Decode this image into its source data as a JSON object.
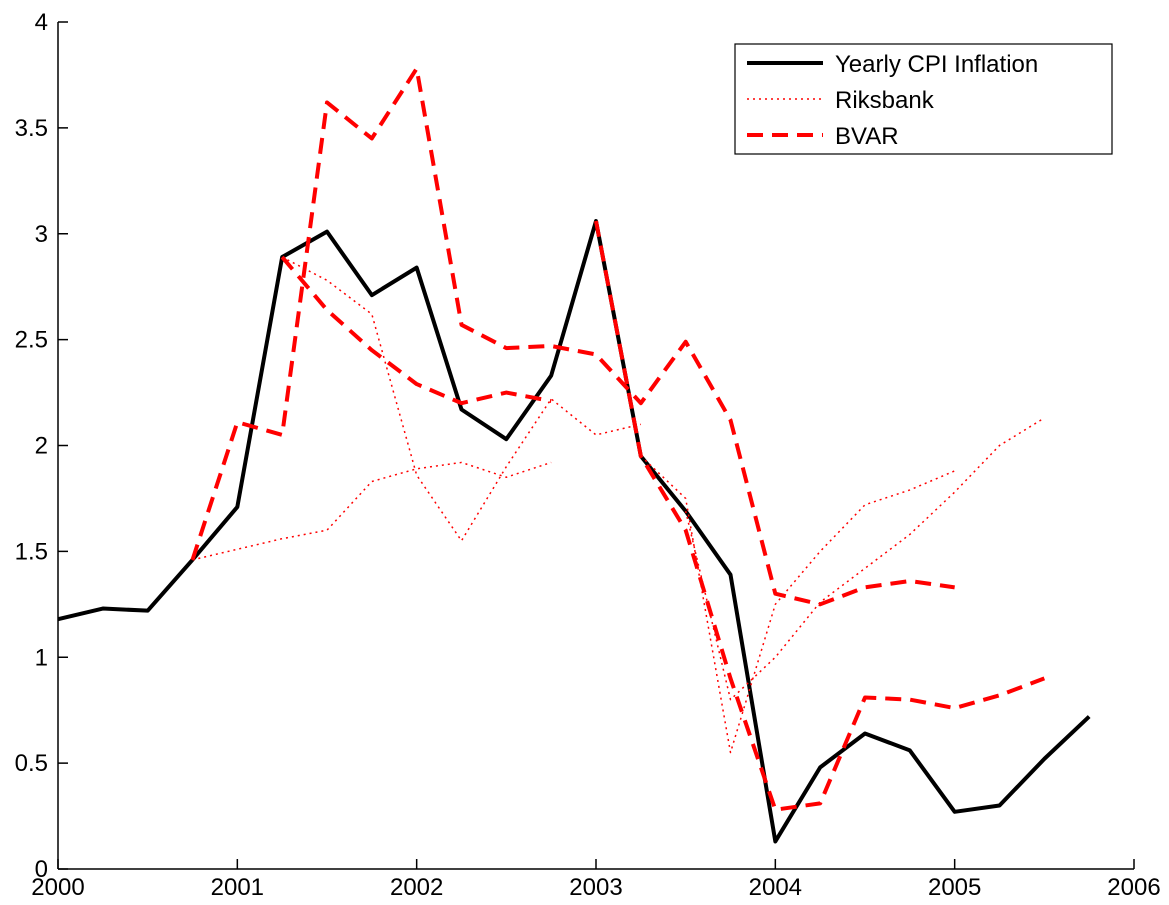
{
  "chart_data": {
    "type": "line",
    "xlim": [
      2000,
      2006
    ],
    "xticks": [
      2000,
      2001,
      2002,
      2003,
      2004,
      2005,
      2006
    ],
    "ylim": [
      0,
      4
    ],
    "yticks": [
      0,
      0.5,
      1,
      1.5,
      2,
      2.5,
      3,
      3.5,
      4
    ],
    "legend": "upper right",
    "series": [
      {
        "name": "Yearly CPI Inflation",
        "color": "#000000",
        "style": "solid",
        "x": [
          2000,
          2000.25,
          2000.5,
          2000.75,
          2001,
          2001.25,
          2001.5,
          2001.75,
          2002,
          2002.25,
          2002.5,
          2002.75,
          2003,
          2003.25,
          2003.5,
          2003.75,
          2004,
          2004.25,
          2004.5,
          2004.75,
          2005,
          2005.25,
          2005.5,
          2005.75
        ],
        "values": [
          1.18,
          1.23,
          1.22,
          1.46,
          1.71,
          2.89,
          3.01,
          2.71,
          2.84,
          2.17,
          2.03,
          2.33,
          3.06,
          1.95,
          1.69,
          1.39,
          0.13,
          0.48,
          0.64,
          0.56,
          0.27,
          0.3,
          0.52,
          0.72
        ]
      },
      {
        "name": "Riksbank",
        "color": "#ff0000",
        "style": "dotted",
        "segments": [
          {
            "x": [
              2000.75,
              2001,
              2001.25,
              2001.5,
              2001.75,
              2002,
              2002.25,
              2002.5,
              2002.75
            ],
            "values": [
              1.46,
              1.51,
              1.56,
              1.6,
              1.83,
              1.89,
              1.92,
              1.85,
              1.92
            ]
          },
          {
            "x": [
              2001.25,
              2001.5,
              2001.75,
              2002,
              2002.25,
              2002.5,
              2002.75,
              2003,
              2003.25
            ],
            "values": [
              2.89,
              2.78,
              2.62,
              1.86,
              1.55,
              1.9,
              2.22,
              2.05,
              2.1
            ]
          },
          {
            "x": [
              2003.25,
              2003.5,
              2003.75,
              2004,
              2004.25,
              2004.5,
              2004.75,
              2005
            ],
            "values": [
              1.95,
              1.75,
              0.55,
              1.25,
              1.5,
              1.72,
              1.79,
              1.88
            ]
          },
          {
            "x": [
              2003.5,
              2003.75,
              2004,
              2004.25,
              2004.5,
              2004.75,
              2005,
              2005.25,
              2005.5
            ],
            "values": [
              1.69,
              0.8,
              1.0,
              1.26,
              1.42,
              1.58,
              1.78,
              2.0,
              2.13
            ]
          }
        ]
      },
      {
        "name": "BVAR",
        "color": "#ff0000",
        "style": "dashed",
        "segments": [
          {
            "x": [
              2000.75,
              2001,
              2001.25,
              2001.5,
              2001.75,
              2002,
              2002.25,
              2002.5,
              2002.75,
              2003,
              2003.25,
              2003.5,
              2003.75,
              2004,
              2004.25,
              2004.5,
              2004.75,
              2005
            ],
            "values": [
              1.46,
              2.11,
              2.05,
              3.62,
              3.45,
              3.78,
              2.57,
              2.46,
              2.47,
              2.43,
              2.2,
              2.49,
              2.12,
              1.3,
              1.25,
              1.33,
              1.36,
              1.33
            ]
          },
          {
            "x": [
              2001.25,
              2001.5,
              2001.75,
              2002,
              2002.25,
              2002.5,
              2002.75
            ],
            "values": [
              2.89,
              2.64,
              2.45,
              2.29,
              2.2,
              2.25,
              2.21
            ]
          },
          {
            "x": [
              2003,
              2003.25,
              2003.5,
              2003.75,
              2004,
              2004.25,
              2004.5,
              2004.75,
              2005,
              2005.25,
              2005.5
            ],
            "values": [
              3.06,
              1.95,
              1.6,
              0.9,
              0.28,
              0.31,
              0.81,
              0.8,
              0.76,
              0.82,
              0.9
            ]
          }
        ]
      }
    ]
  }
}
